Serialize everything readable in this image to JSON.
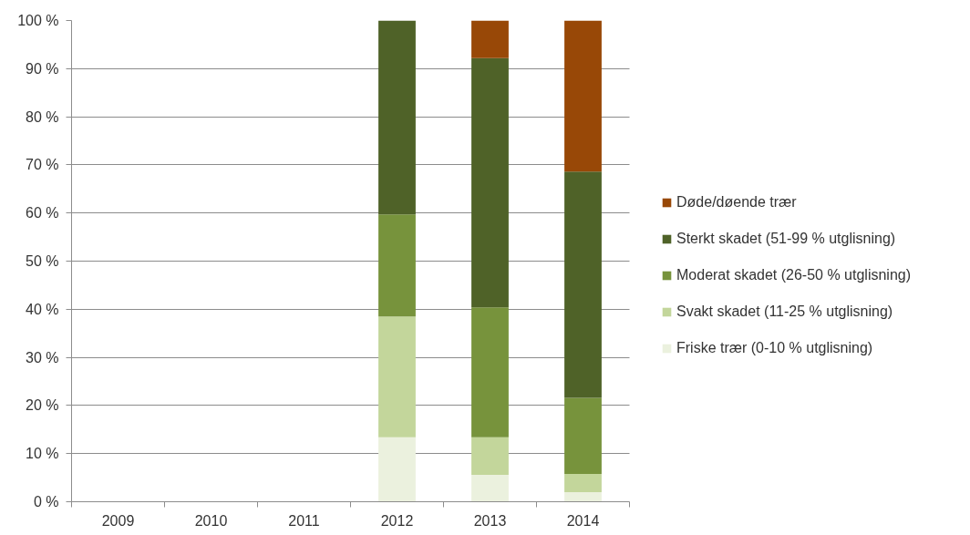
{
  "chart_data": {
    "type": "bar",
    "stacked": true,
    "categories": [
      "2009",
      "2010",
      "2011",
      "2012",
      "2013",
      "2014"
    ],
    "series": [
      {
        "name": "Friske trær (0-10 % utglisning)",
        "color": "#ebf1de",
        "values": [
          null,
          null,
          null,
          13.4,
          5.6,
          2.0
        ]
      },
      {
        "name": "Svakt skadet (11-25 % utglisning)",
        "color": "#c3d69b",
        "values": [
          null,
          null,
          null,
          25.1,
          7.8,
          3.8
        ]
      },
      {
        "name": "Moderat skadet (26-50 % utglisning)",
        "color": "#77933c",
        "values": [
          null,
          null,
          null,
          21.2,
          27.0,
          15.8
        ]
      },
      {
        "name": "Sterkt skadet (51-99 % utglisning)",
        "color": "#4f6228",
        "values": [
          null,
          null,
          null,
          40.3,
          51.8,
          47.0
        ]
      },
      {
        "name": "Døde/døende trær",
        "color": "#984807",
        "values": [
          null,
          null,
          null,
          null,
          7.8,
          31.4
        ]
      }
    ],
    "ylim": [
      0,
      100
    ],
    "yticks": [
      {
        "value": 0,
        "label": "0 %"
      },
      {
        "value": 10,
        "label": "10 %"
      },
      {
        "value": 20,
        "label": "20 %"
      },
      {
        "value": 30,
        "label": "30 %"
      },
      {
        "value": 40,
        "label": "40 %"
      },
      {
        "value": 50,
        "label": "50 %"
      },
      {
        "value": 60,
        "label": "60 %"
      },
      {
        "value": 70,
        "label": "70 %"
      },
      {
        "value": 80,
        "label": "80 %"
      },
      {
        "value": 90,
        "label": "90 %"
      },
      {
        "value": 100,
        "label": "100 %"
      }
    ],
    "grid": "y",
    "legend": "right"
  }
}
